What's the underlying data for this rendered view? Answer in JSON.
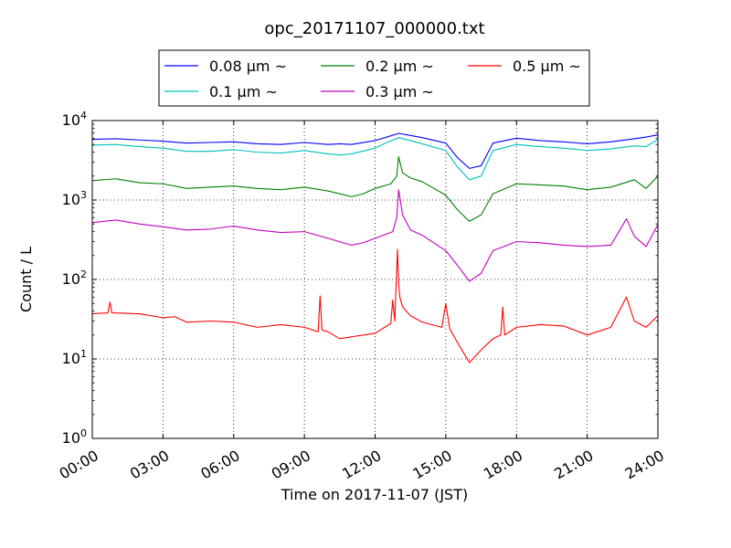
{
  "chart_data": {
    "type": "line",
    "title": "opc_20171107_000000.txt",
    "xlabel": "Time on 2017-11-07 (JST)",
    "ylabel": "Count / L",
    "yscale": "log",
    "ylim": [
      1,
      10000
    ],
    "y_ticks": [
      {
        "value": 1,
        "base": "10",
        "exp": "0"
      },
      {
        "value": 10,
        "base": "10",
        "exp": "1"
      },
      {
        "value": 100,
        "base": "10",
        "exp": "2"
      },
      {
        "value": 1000,
        "base": "10",
        "exp": "3"
      },
      {
        "value": 10000,
        "base": "10",
        "exp": "4"
      }
    ],
    "xlim": [
      "2017-11-07T00:00",
      "2017-11-08T00:00"
    ],
    "x_tick_labels": [
      "00:00",
      "03:00",
      "06:00",
      "09:00",
      "12:00",
      "15:00",
      "18:00",
      "21:00",
      "24:00"
    ],
    "x_ticks": [
      "2017-11-07T00:00",
      "2017-11-07T03:00",
      "2017-11-07T06:00",
      "2017-11-07T09:00",
      "2017-11-07T12:00",
      "2017-11-07T15:00",
      "2017-11-07T18:00",
      "2017-11-07T21:00",
      "2017-11-08T00:00"
    ],
    "grid": true,
    "legend_position": "top-center (above plot)",
    "legend_columns": 3,
    "series": [
      {
        "name": "0.08 μm ~",
        "color": "#0000ff",
        "x": [
          "2017-11-07T00:00",
          "2017-11-07T01:00",
          "2017-11-07T02:00",
          "2017-11-07T03:00",
          "2017-11-07T04:00",
          "2017-11-07T05:00",
          "2017-11-07T06:00",
          "2017-11-07T07:00",
          "2017-11-07T08:00",
          "2017-11-07T09:00",
          "2017-11-07T10:00",
          "2017-11-07T10:30",
          "2017-11-07T11:00",
          "2017-11-07T12:00",
          "2017-11-07T12:30",
          "2017-11-07T13:00",
          "2017-11-07T13:30",
          "2017-11-07T14:00",
          "2017-11-07T15:00",
          "2017-11-07T15:30",
          "2017-11-07T16:00",
          "2017-11-07T16:30",
          "2017-11-07T17:00",
          "2017-11-07T18:00",
          "2017-11-07T19:00",
          "2017-11-07T20:00",
          "2017-11-07T21:00",
          "2017-11-07T22:00",
          "2017-11-07T23:00",
          "2017-11-07T23:30",
          "2017-11-08T00:00"
        ],
        "y": [
          5800,
          5900,
          5700,
          5500,
          5200,
          5300,
          5400,
          5100,
          5000,
          5300,
          5000,
          5100,
          5000,
          5600,
          6200,
          6900,
          6500,
          6100,
          5200,
          3400,
          2500,
          2700,
          5200,
          6000,
          5600,
          5400,
          5100,
          5400,
          5900,
          6200,
          6600
        ]
      },
      {
        "name": "0.1 μm ~",
        "color": "#00bfbf",
        "x": [
          "2017-11-07T00:00",
          "2017-11-07T01:00",
          "2017-11-07T02:00",
          "2017-11-07T03:00",
          "2017-11-07T04:00",
          "2017-11-07T05:00",
          "2017-11-07T06:00",
          "2017-11-07T07:00",
          "2017-11-07T08:00",
          "2017-11-07T09:00",
          "2017-11-07T10:00",
          "2017-11-07T10:30",
          "2017-11-07T11:00",
          "2017-11-07T12:00",
          "2017-11-07T12:30",
          "2017-11-07T13:00",
          "2017-11-07T13:30",
          "2017-11-07T14:00",
          "2017-11-07T15:00",
          "2017-11-07T15:30",
          "2017-11-07T16:00",
          "2017-11-07T16:30",
          "2017-11-07T17:00",
          "2017-11-07T18:00",
          "2017-11-07T19:00",
          "2017-11-07T20:00",
          "2017-11-07T21:00",
          "2017-11-07T22:00",
          "2017-11-07T23:00",
          "2017-11-07T23:30",
          "2017-11-08T00:00"
        ],
        "y": [
          4900,
          5000,
          4700,
          4500,
          4100,
          4100,
          4300,
          4000,
          3900,
          4200,
          3800,
          3700,
          3800,
          4500,
          5300,
          6100,
          5600,
          5100,
          4200,
          2600,
          1800,
          2000,
          4200,
          5000,
          4700,
          4500,
          4200,
          4400,
          4800,
          4700,
          5800
        ]
      },
      {
        "name": "0.2 μm ~",
        "color": "#008000",
        "x": [
          "2017-11-07T00:00",
          "2017-11-07T01:00",
          "2017-11-07T02:00",
          "2017-11-07T03:00",
          "2017-11-07T04:00",
          "2017-11-07T05:00",
          "2017-11-07T06:00",
          "2017-11-07T07:00",
          "2017-11-07T08:00",
          "2017-11-07T09:00",
          "2017-11-07T10:00",
          "2017-11-07T11:00",
          "2017-11-07T11:30",
          "2017-11-07T12:00",
          "2017-11-07T12:40",
          "2017-11-07T12:55",
          "2017-11-07T13:00",
          "2017-11-07T13:10",
          "2017-11-07T13:30",
          "2017-11-07T14:00",
          "2017-11-07T15:00",
          "2017-11-07T15:30",
          "2017-11-07T16:00",
          "2017-11-07T16:30",
          "2017-11-07T17:00",
          "2017-11-07T18:00",
          "2017-11-07T19:00",
          "2017-11-07T20:00",
          "2017-11-07T21:00",
          "2017-11-07T22:00",
          "2017-11-07T23:00",
          "2017-11-07T23:30",
          "2017-11-08T00:00"
        ],
        "y": [
          1750,
          1850,
          1650,
          1600,
          1400,
          1450,
          1500,
          1400,
          1350,
          1450,
          1300,
          1100,
          1200,
          1400,
          1600,
          2000,
          3500,
          2200,
          1900,
          1700,
          1150,
          750,
          540,
          650,
          1200,
          1600,
          1550,
          1500,
          1350,
          1450,
          1800,
          1400,
          2000
        ]
      },
      {
        "name": "0.3 μm ~",
        "color": "#bf00bf",
        "x": [
          "2017-11-07T00:00",
          "2017-11-07T01:00",
          "2017-11-07T02:00",
          "2017-11-07T03:00",
          "2017-11-07T04:00",
          "2017-11-07T05:00",
          "2017-11-07T06:00",
          "2017-11-07T07:00",
          "2017-11-07T08:00",
          "2017-11-07T09:00",
          "2017-11-07T10:00",
          "2017-11-07T11:00",
          "2017-11-07T11:30",
          "2017-11-07T12:00",
          "2017-11-07T12:45",
          "2017-11-07T12:55",
          "2017-11-07T13:00",
          "2017-11-07T13:10",
          "2017-11-07T13:30",
          "2017-11-07T14:00",
          "2017-11-07T15:00",
          "2017-11-07T15:30",
          "2017-11-07T16:00",
          "2017-11-07T16:30",
          "2017-11-07T17:00",
          "2017-11-07T18:00",
          "2017-11-07T19:00",
          "2017-11-07T20:00",
          "2017-11-07T21:00",
          "2017-11-07T22:00",
          "2017-11-07T22:40",
          "2017-11-07T23:00",
          "2017-11-07T23:30",
          "2017-11-08T00:00"
        ],
        "y": [
          520,
          560,
          500,
          460,
          420,
          430,
          470,
          420,
          390,
          400,
          330,
          270,
          290,
          330,
          400,
          600,
          1350,
          650,
          420,
          360,
          230,
          150,
          95,
          120,
          230,
          300,
          290,
          270,
          260,
          270,
          580,
          350,
          260,
          490
        ]
      },
      {
        "name": "0.5 μm ~",
        "color": "#ff0000",
        "x": [
          "2017-11-07T00:00",
          "2017-11-07T00:40",
          "2017-11-07T00:45",
          "2017-11-07T00:50",
          "2017-11-07T02:00",
          "2017-11-07T03:00",
          "2017-11-07T03:30",
          "2017-11-07T04:00",
          "2017-11-07T05:00",
          "2017-11-07T06:00",
          "2017-11-07T07:00",
          "2017-11-07T08:00",
          "2017-11-07T09:00",
          "2017-11-07T09:35",
          "2017-11-07T09:40",
          "2017-11-07T09:45",
          "2017-11-07T10:00",
          "2017-11-07T10:30",
          "2017-11-07T11:00",
          "2017-11-07T12:00",
          "2017-11-07T12:30",
          "2017-11-07T12:40",
          "2017-11-07T12:45",
          "2017-11-07T12:50",
          "2017-11-07T12:57",
          "2017-11-07T13:00",
          "2017-11-07T13:03",
          "2017-11-07T13:10",
          "2017-11-07T13:30",
          "2017-11-07T14:00",
          "2017-11-07T14:50",
          "2017-11-07T15:00",
          "2017-11-07T15:10",
          "2017-11-07T15:30",
          "2017-11-07T16:00",
          "2017-11-07T16:30",
          "2017-11-07T17:00",
          "2017-11-07T17:20",
          "2017-11-07T17:25",
          "2017-11-07T17:30",
          "2017-11-07T18:00",
          "2017-11-07T19:00",
          "2017-11-07T20:00",
          "2017-11-07T21:00",
          "2017-11-07T22:00",
          "2017-11-07T22:40",
          "2017-11-07T23:00",
          "2017-11-07T23:30",
          "2017-11-08T00:00"
        ],
        "y": [
          37,
          38,
          52,
          38,
          37,
          33,
          34,
          29,
          30,
          29,
          25,
          27,
          25,
          22,
          62,
          23,
          22,
          18,
          19,
          21,
          26,
          28,
          55,
          30,
          240,
          90,
          60,
          45,
          35,
          29,
          25,
          50,
          24,
          16,
          9,
          13,
          18,
          20,
          45,
          20,
          25,
          27,
          26,
          20,
          25,
          60,
          30,
          25,
          35
        ]
      }
    ]
  }
}
